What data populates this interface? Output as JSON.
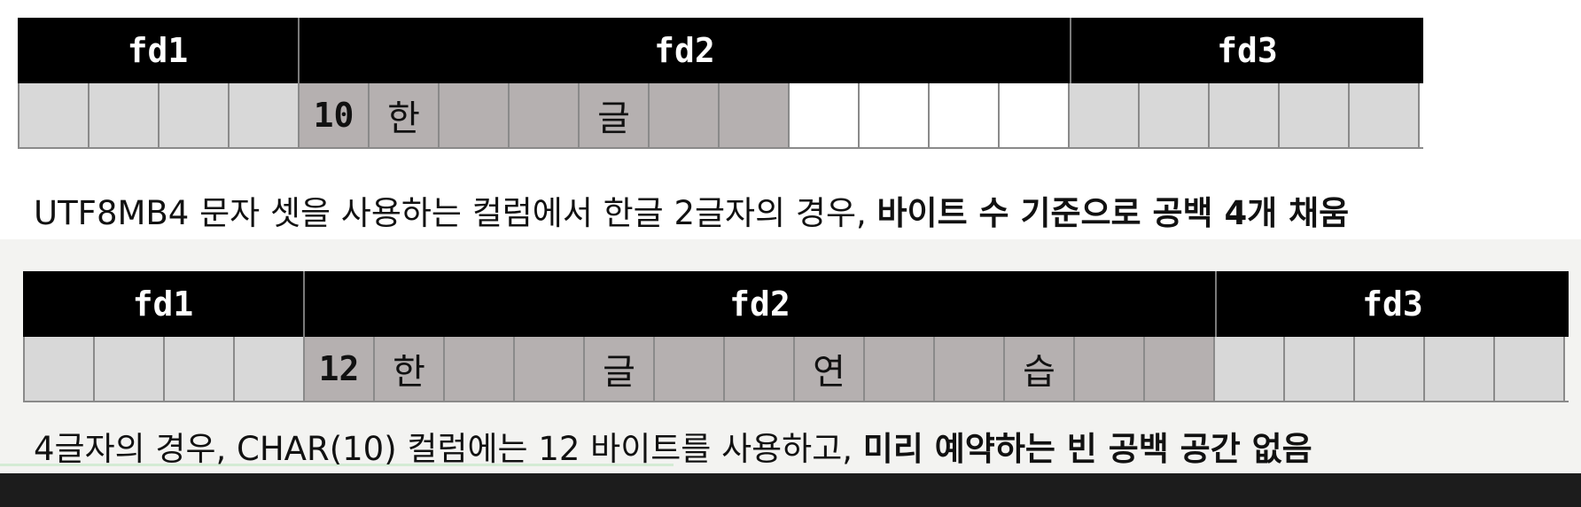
{
  "diagram1": {
    "headers": [
      "fd1",
      "fd2",
      "fd3"
    ],
    "fd1_cells": [
      "",
      "",
      "",
      ""
    ],
    "fd2_cells": [
      "10",
      "한",
      "",
      "",
      "글",
      "",
      ""
    ],
    "fd2_empty_cells": [
      "",
      "",
      "",
      ""
    ],
    "fd3_cells": [
      "",
      "",
      "",
      "",
      ""
    ]
  },
  "caption1": {
    "text": "UTF8MB4 문자 셋을 사용하는 컬럼에서 한글 2글자의 경우, ",
    "bold": "바이트 수 기준으로 공백 4개 채움"
  },
  "diagram2": {
    "headers": [
      "fd1",
      "fd2",
      "fd3"
    ],
    "fd1_cells": [
      "",
      "",
      "",
      ""
    ],
    "fd2_cells": [
      "12",
      "한",
      "",
      "",
      "글",
      "",
      "",
      "연",
      "",
      "",
      "습",
      "",
      ""
    ],
    "fd3_cells": [
      "",
      "",
      "",
      "",
      ""
    ]
  },
  "caption2": {
    "text": "4글자의 경우, CHAR(10) 컬럼에는 12 바이트를 사용하고, ",
    "bold": "미리 예약하는 빈 공백 공간 없음"
  },
  "colors": {
    "header_bg": "#000000",
    "fd1_fd3_cell": "#d8d8d8",
    "fd2_used_cell": "#b5b0b0",
    "fd2_empty_cell": "#ffffff"
  }
}
